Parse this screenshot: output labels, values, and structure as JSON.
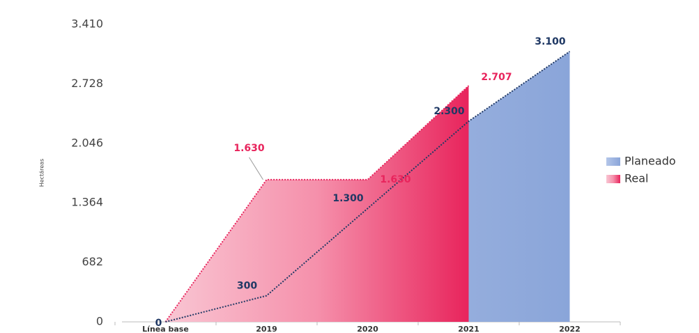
{
  "chart_data": {
    "type": "area",
    "y_label": "Hectáreas",
    "categories": [
      "Línea base",
      "2019",
      "2020",
      "2021",
      "2022"
    ],
    "series": [
      {
        "name": "Planeado",
        "color": "#8faadc",
        "line_color": "#1f3864",
        "values": [
          0,
          300,
          1300,
          2300,
          3100
        ],
        "value_labels": [
          "0",
          "300",
          "1.300",
          "2.300",
          "3.100"
        ]
      },
      {
        "name": "Real",
        "color": "#ea2a5f",
        "line_color": "#e8245c",
        "values": [
          0,
          1630,
          1630,
          2707,
          null
        ],
        "value_labels": [
          null,
          "1.630",
          "1.630",
          "2.707",
          null
        ]
      }
    ],
    "ylim": [
      0,
      3410
    ],
    "yticks": [
      0,
      682,
      {
        "value": 1364,
        "label": "1.364"
      },
      {
        "value": 2046,
        "label": "2.046"
      },
      {
        "value": 2728,
        "label": "2.728"
      },
      {
        "value": 3410,
        "label": "3.410"
      }
    ],
    "legend": "right"
  }
}
